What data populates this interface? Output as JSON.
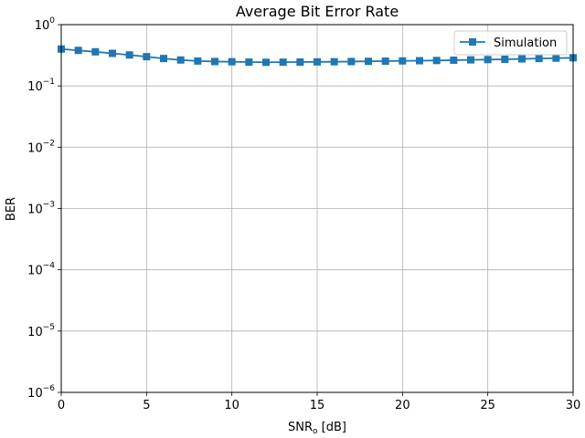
{
  "chart_data": {
    "type": "line",
    "title": "Average Bit Error Rate",
    "xlabel": "SNR",
    "xlabel_sub": "o",
    "xlabel_unit": " [dB]",
    "ylabel": "BER",
    "xlim": [
      0,
      30
    ],
    "ylim": [
      1e-06,
      1
    ],
    "yscale": "log",
    "grid": true,
    "legend_position": "upper right",
    "x_ticks": [
      0,
      5,
      10,
      15,
      20,
      25,
      30
    ],
    "x_tick_labels": [
      "0",
      "5",
      "10",
      "15",
      "20",
      "25",
      "30"
    ],
    "y_ticks": [
      1e-06,
      1e-05,
      0.0001,
      0.001,
      0.01,
      0.1,
      1
    ],
    "y_tick_labels": [
      {
        "base": "10",
        "exp": "−6"
      },
      {
        "base": "10",
        "exp": "−5"
      },
      {
        "base": "10",
        "exp": "−4"
      },
      {
        "base": "10",
        "exp": "−3"
      },
      {
        "base": "10",
        "exp": "−2"
      },
      {
        "base": "10",
        "exp": "−1"
      },
      {
        "base": "10",
        "exp": "0"
      }
    ],
    "series": [
      {
        "name": "Simulation",
        "color": "#1f77b4",
        "marker": "square",
        "x": [
          0,
          1,
          2,
          3,
          4,
          5,
          6,
          7,
          8,
          9,
          10,
          11,
          12,
          13,
          14,
          15,
          16,
          17,
          18,
          19,
          20,
          21,
          22,
          23,
          24,
          25,
          26,
          27,
          28,
          29,
          30
        ],
        "y": [
          0.4,
          0.38,
          0.36,
          0.34,
          0.32,
          0.3,
          0.28,
          0.265,
          0.255,
          0.25,
          0.248,
          0.245,
          0.243,
          0.244,
          0.245,
          0.247,
          0.248,
          0.25,
          0.252,
          0.254,
          0.256,
          0.258,
          0.26,
          0.263,
          0.266,
          0.269,
          0.272,
          0.276,
          0.28,
          0.284,
          0.288
        ]
      }
    ]
  }
}
